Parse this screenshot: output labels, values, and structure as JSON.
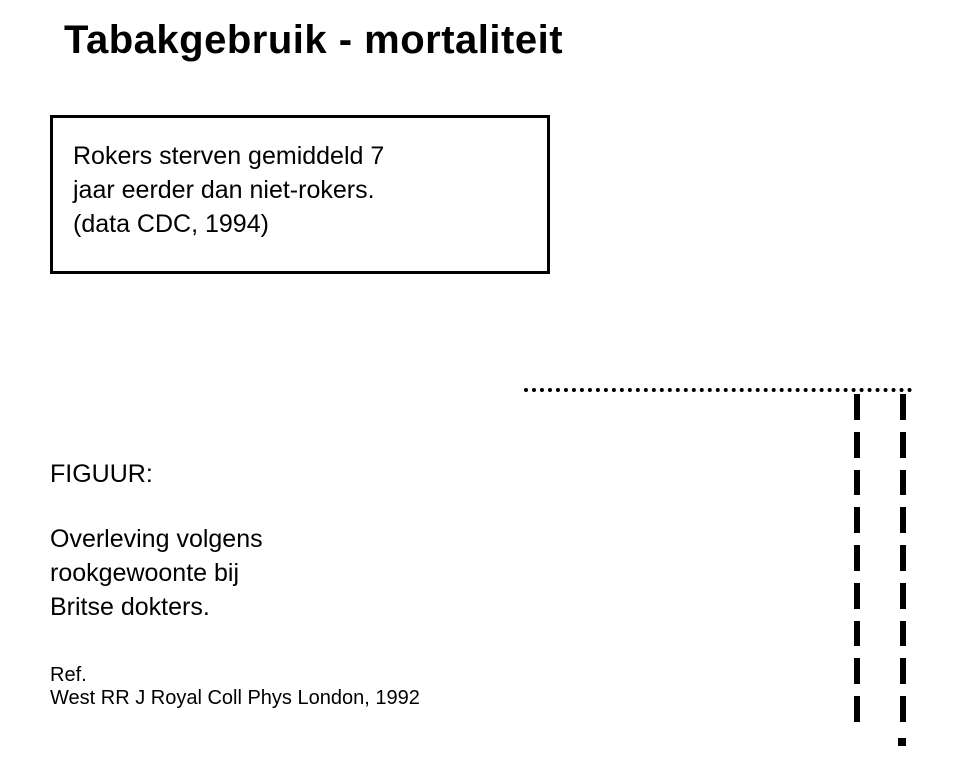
{
  "title": "Tabakgebruik - mortaliteit",
  "box": {
    "line1": "Rokers sterven gemiddeld 7",
    "line2": "jaar eerder dan niet-rokers.",
    "line3": "(data CDC, 1994)"
  },
  "figure": {
    "label": "FIGUUR:",
    "caption_line1": "Overleving volgens",
    "caption_line2": "rookgewoonte bij",
    "caption_line3": "Britse dokters."
  },
  "reference": {
    "label": "Ref.",
    "text": "West RR  J Royal Coll Phys London, 1992"
  },
  "chart_placeholder": {
    "dotted_color": "#000000",
    "bar_color": "#000000",
    "segments_per_column": 9,
    "segment_height": 26,
    "segment_gap": 12,
    "columns": 2
  }
}
